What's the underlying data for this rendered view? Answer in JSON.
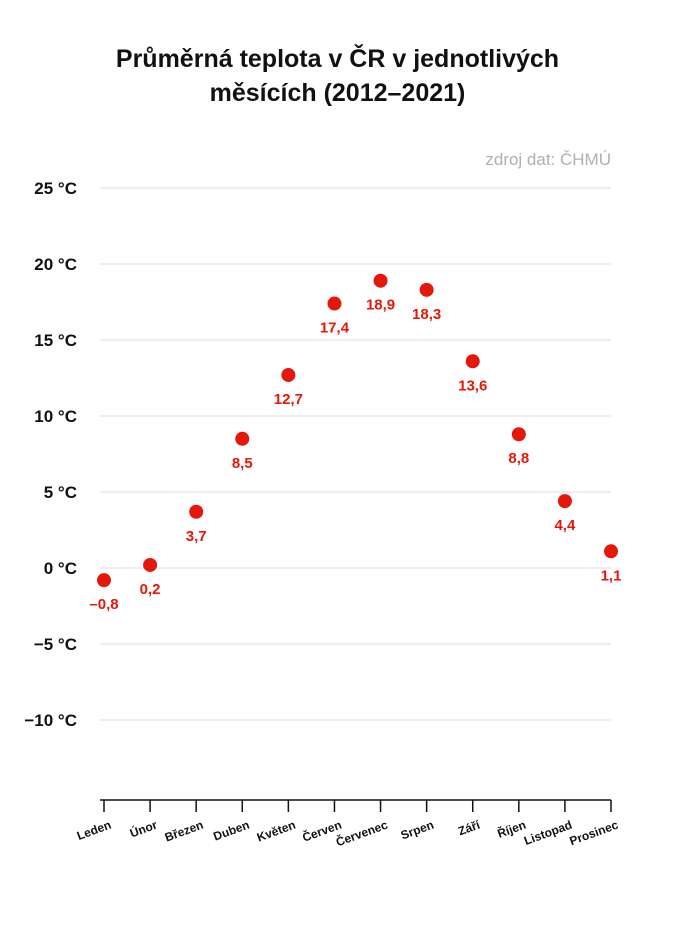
{
  "chart_data": {
    "type": "scatter",
    "title_lines": [
      "Průměrná teplota v ČR v jednotlivých",
      "měsících (2012–2021)"
    ],
    "source": "zdroj dat: ČHMÚ",
    "categories": [
      "Leden",
      "Únor",
      "Březen",
      "Duben",
      "Květen",
      "Červen",
      "Červenec",
      "Srpen",
      "Září",
      "Říjen",
      "Listopad",
      "Prosinec"
    ],
    "values": [
      -0.8,
      0.2,
      3.7,
      8.5,
      12.7,
      17.4,
      18.9,
      18.3,
      13.6,
      8.8,
      4.4,
      1.1
    ],
    "value_labels": [
      "–0,8",
      "0,2",
      "3,7",
      "8,5",
      "12,7",
      "17,4",
      "18,9",
      "18,3",
      "13,6",
      "8,8",
      "4,4",
      "1,1"
    ],
    "y_ticks": [
      25,
      20,
      15,
      10,
      5,
      0,
      -5,
      -10
    ],
    "y_tick_labels": [
      "25 °C",
      "20 °C",
      "15 °C",
      "10 °C",
      "5 °C",
      "0 °C",
      "−5 °C",
      "−10 °C"
    ],
    "ylim": [
      -15,
      25
    ],
    "grid": true,
    "legend": "none",
    "colors": {
      "marker": "#e3170a",
      "grid": "#dddddd",
      "axis": "#111111",
      "source": "#b0b0b0"
    }
  }
}
